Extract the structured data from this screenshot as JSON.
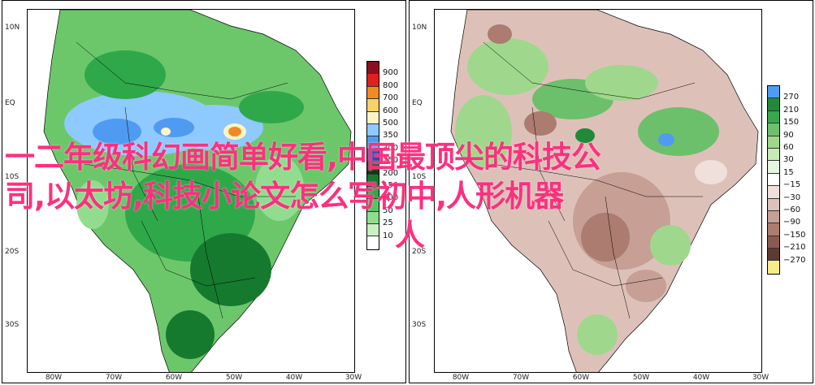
{
  "overlay": {
    "line1": "一二年级科幻画简单好看,中国最顶尖的科技公",
    "line2": "司,以太坊,科技小论文怎么写初中,人形机器",
    "line3": "人"
  },
  "maps": [
    {
      "lat_labels": [
        "10N",
        "EQ",
        "10S",
        "20S",
        "30S"
      ],
      "lon_labels": [
        "80W",
        "70W",
        "60W",
        "50W",
        "40W",
        "30W"
      ],
      "colorbar": {
        "labels": [
          "900",
          "800",
          "700",
          "600",
          "500",
          "350",
          "300",
          "250",
          "200",
          "150",
          "100",
          "50",
          "25",
          "10"
        ],
        "colors": [
          "#8b0f1e",
          "#e02020",
          "#f08a24",
          "#f7d26a",
          "#fbf5c4",
          "#8ec9ff",
          "#4f9bf2",
          "#1d4fae",
          "#0b3d0b",
          "#157a2e",
          "#2fa84a",
          "#59c467",
          "#92dc8f",
          "#c9f0c2",
          "#ffffff"
        ]
      }
    },
    {
      "lat_labels": [
        "10N",
        "EQ",
        "10S",
        "20S",
        "30S"
      ],
      "lon_labels": [
        "80W",
        "70W",
        "60W",
        "50W",
        "40W",
        "30W"
      ],
      "colorbar": {
        "labels": [
          "270",
          "210",
          "150",
          "90",
          "60",
          "30",
          "15",
          "−15",
          "−30",
          "−60",
          "−90",
          "−150",
          "−210",
          "−270"
        ],
        "colors": [
          "#4f9bf2",
          "#1e8a3a",
          "#37a84c",
          "#6cc06b",
          "#9fd88c",
          "#c6ebb4",
          "#e6f5df",
          "#ffffff",
          "#efe0dc",
          "#ddc1b9",
          "#c79f94",
          "#ac7c70",
          "#8a5a4e",
          "#5e3a30",
          "#f7ec8a"
        ]
      }
    }
  ]
}
